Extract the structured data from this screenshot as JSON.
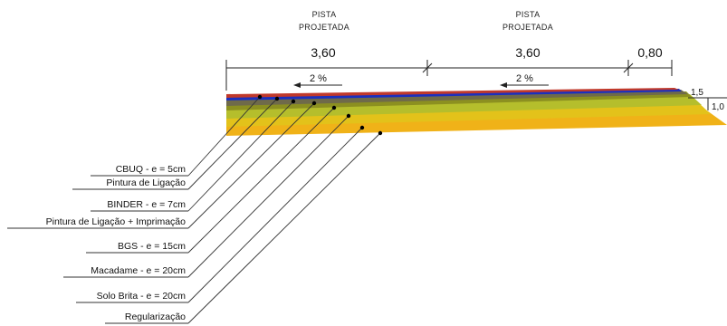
{
  "header": {
    "lanes": [
      {
        "line1": "PISTA",
        "line2": "PROJETADA"
      },
      {
        "line1": "PISTA",
        "line2": "PROJETADA"
      }
    ]
  },
  "dimensions": [
    "3,60",
    "3,60",
    "0,80"
  ],
  "slopes": [
    "2  %",
    "2  %"
  ],
  "side_slope": {
    "top": "1,5",
    "right": "1,0"
  },
  "colors": {
    "cbuq": "#c0392b",
    "tack_coat": "#1a2fc0",
    "binder": "#6f6a4a",
    "prime_coat": "#8c9020",
    "bgs": "#b5be2c",
    "macadame": "#e3c21a",
    "solo_brita": "#f0b218",
    "leader": "#333333"
  },
  "layers": [
    {
      "label": "CBUQ - e = 5cm"
    },
    {
      "label": "Pintura de Ligação"
    },
    {
      "label": "BINDER - e = 7cm"
    },
    {
      "label": "Pintura de Ligação + Imprimação"
    },
    {
      "label": "BGS - e = 15cm"
    },
    {
      "label": "Macadame - e = 20cm"
    },
    {
      "label": "Solo Brita - e = 20cm"
    },
    {
      "label": "Regularização"
    }
  ]
}
